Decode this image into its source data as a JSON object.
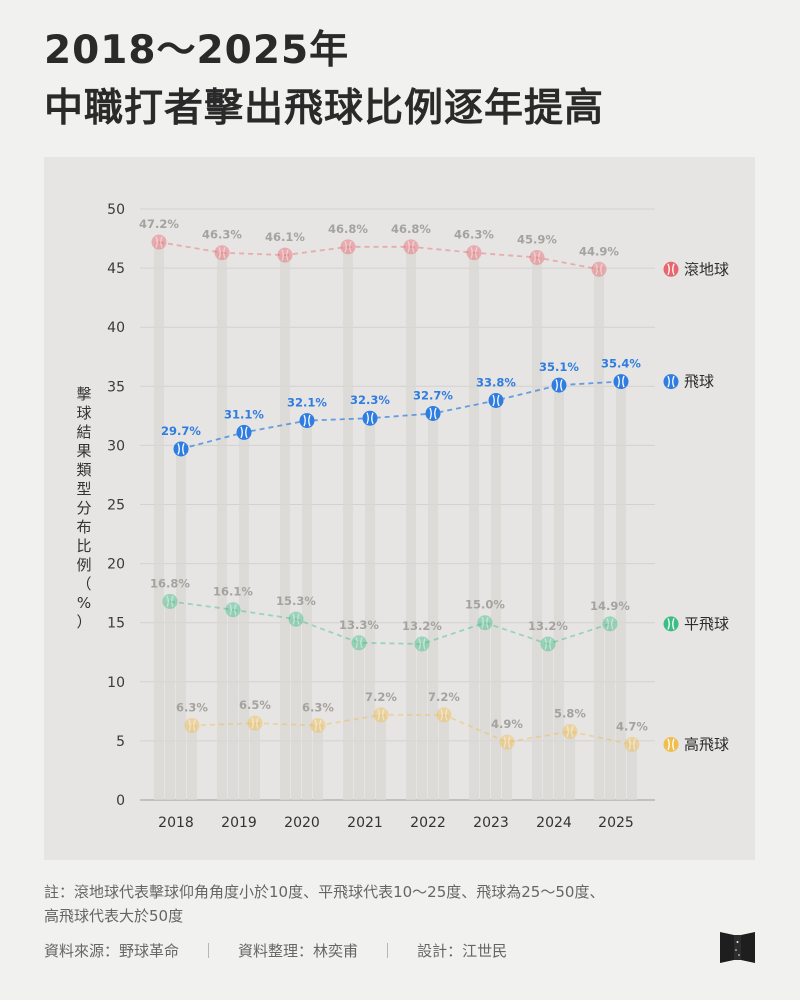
{
  "header": {
    "title_line1": "2018～2025年",
    "title_line2": "中職打者擊出飛球比例逐年提高"
  },
  "colors": {
    "background": "#f1f1ef",
    "panel": "#e6e5e3",
    "grid": "#d3d2d0",
    "bars": "#d8d7d4",
    "ground": "#e8666f",
    "fly": "#2f7de0",
    "line": "#3dbd86",
    "popup": "#f0bd4f"
  },
  "chart_data": {
    "type": "line",
    "title": "2018～2025年 中職打者擊出飛球比例逐年提高",
    "xlabel": "",
    "ylabel": "擊球結果類型分布比例（%）",
    "ylim": [
      0,
      50
    ],
    "yticks": [
      0,
      5,
      10,
      15,
      20,
      25,
      30,
      35,
      40,
      45,
      50
    ],
    "grid": true,
    "categories": [
      "2018",
      "2019",
      "2020",
      "2021",
      "2022",
      "2023",
      "2024",
      "2025"
    ],
    "legend_placement": "right of series ends",
    "series": [
      {
        "name": "滾地球",
        "key": "ground",
        "color": "#e8666f",
        "values": [
          47.2,
          46.3,
          46.1,
          46.8,
          46.8,
          46.3,
          45.9,
          44.9
        ],
        "labels": [
          "47.2%",
          "46.3%",
          "46.1%",
          "46.8%",
          "46.8%",
          "46.3%",
          "45.9%",
          "44.9%"
        ]
      },
      {
        "name": "飛球",
        "key": "fly",
        "color": "#2f7de0",
        "values": [
          29.7,
          31.1,
          32.1,
          32.3,
          32.7,
          33.8,
          35.1,
          35.4
        ],
        "labels": [
          "29.7%",
          "31.1%",
          "32.1%",
          "32.3%",
          "32.7%",
          "33.8%",
          "35.1%",
          "35.4%"
        ]
      },
      {
        "name": "平飛球",
        "key": "line",
        "color": "#3dbd86",
        "values": [
          16.8,
          16.1,
          15.3,
          13.3,
          13.2,
          15.0,
          13.2,
          14.9
        ],
        "labels": [
          "16.8%",
          "16.1%",
          "15.3%",
          "13.3%",
          "13.2%",
          "15.0%",
          "13.2%",
          "14.9%"
        ]
      },
      {
        "name": "高飛球",
        "key": "popup",
        "color": "#f0bd4f",
        "values": [
          6.3,
          6.5,
          6.3,
          7.2,
          7.2,
          4.9,
          5.8,
          4.7
        ],
        "labels": [
          "6.3%",
          "6.5%",
          "6.3%",
          "7.2%",
          "7.2%",
          "4.9%",
          "5.8%",
          "4.7%"
        ]
      }
    ]
  },
  "y_title_chars": [
    "擊",
    "球",
    "結",
    "果",
    "類",
    "型",
    "分",
    "布",
    "比",
    "例",
    "（",
    "%",
    "）"
  ],
  "footnote": {
    "line1": "註：滾地球代表擊球仰角角度小於10度、平飛球代表10～25度、飛球為25～50度、",
    "line2": "高飛球代表大於50度"
  },
  "credits": {
    "source": "資料來源：野球革命",
    "compiled": "資料整理：林奕甫",
    "design": "設計：江世民",
    "separator": "｜"
  }
}
